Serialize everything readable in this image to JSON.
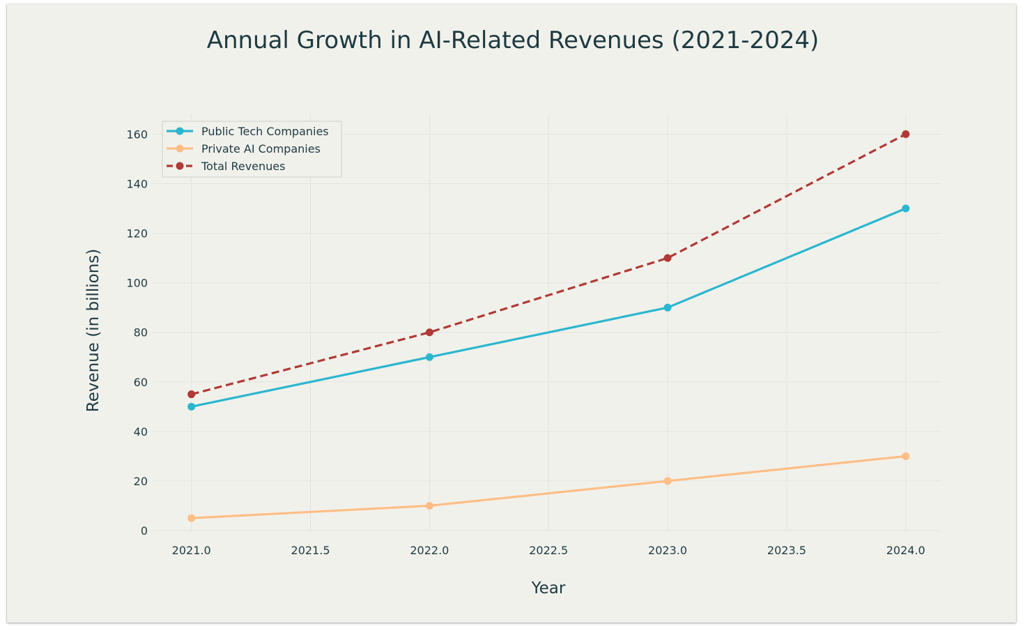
{
  "chart_data": {
    "type": "line",
    "title": "Annual Growth in AI-Related Revenues (2021-2024)",
    "xlabel": "Year",
    "ylabel": "Revenue (in billions)",
    "x": [
      2021,
      2022,
      2023,
      2024
    ],
    "xticks": [
      "2021.0",
      "2021.5",
      "2022.0",
      "2022.5",
      "2023.0",
      "2023.5",
      "2024.0"
    ],
    "xtick_values": [
      2021,
      2021.5,
      2022,
      2022.5,
      2023,
      2023.5,
      2024
    ],
    "yticks": [
      0,
      20,
      40,
      60,
      80,
      100,
      120,
      140,
      160
    ],
    "xlim": [
      2020.84,
      2024.15
    ],
    "ylim": [
      0,
      168
    ],
    "grid": true,
    "legend_position": "top-left",
    "series": [
      {
        "name": "Public Tech Companies",
        "values": [
          50,
          70,
          90,
          130
        ],
        "color": "#2bb6cf",
        "dash": "solid"
      },
      {
        "name": "Private AI Companies",
        "values": [
          5,
          10,
          20,
          30
        ],
        "color": "#ffbe85",
        "dash": "solid"
      },
      {
        "name": "Total Revenues",
        "values": [
          55,
          80,
          110,
          160
        ],
        "color": "#b03a35",
        "dash": "dashed"
      }
    ]
  }
}
